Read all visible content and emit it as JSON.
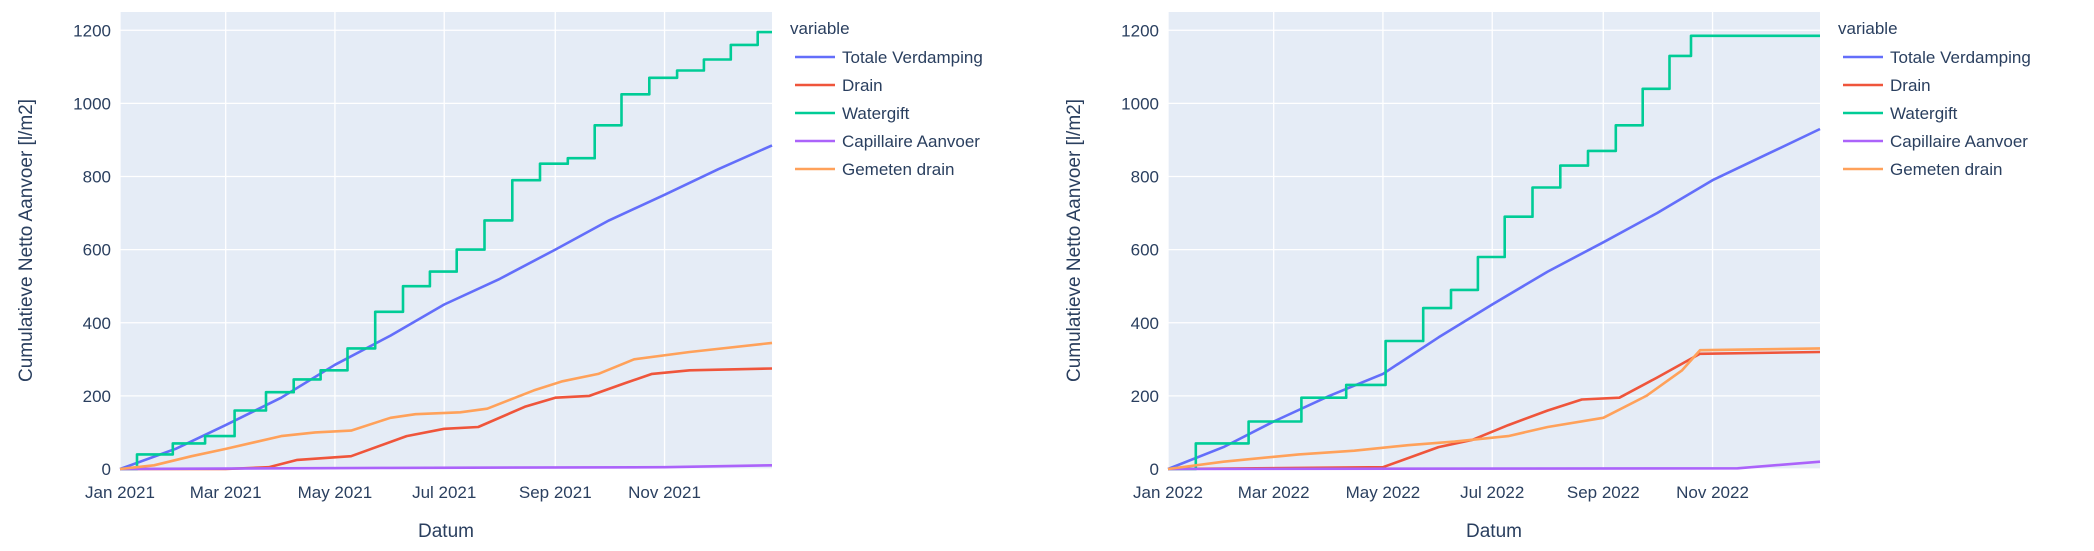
{
  "chart_data": [
    {
      "type": "line",
      "xlabel": "Datum",
      "ylabel": "Cumulatieve Netto Aanvoer [l/m2]",
      "legend_title": "variable",
      "legend_placement": "right",
      "x_ticks": [
        "Jan 2021",
        "Mar 2021",
        "May 2021",
        "Jul 2021",
        "Sep 2021",
        "Nov 2021"
      ],
      "x_tick_dates": [
        "2021-01-01",
        "2021-03-01",
        "2021-05-01",
        "2021-07-01",
        "2021-09-01",
        "2021-11-01"
      ],
      "xlim": [
        "2021-01-01",
        "2021-12-31"
      ],
      "ylim": [
        0,
        1250
      ],
      "y_ticks": [
        0,
        200,
        400,
        600,
        800,
        1000,
        1200
      ],
      "grid": true,
      "series": [
        {
          "name": "Totale Verdamping",
          "color": "#636efa",
          "step": false,
          "x": [
            "2021-01-01",
            "2021-02-01",
            "2021-03-01",
            "2021-04-01",
            "2021-05-01",
            "2021-06-01",
            "2021-07-01",
            "2021-08-01",
            "2021-09-01",
            "2021-10-01",
            "2021-11-01",
            "2021-12-01",
            "2021-12-31"
          ],
          "y": [
            0,
            55,
            120,
            195,
            285,
            365,
            450,
            520,
            600,
            680,
            750,
            820,
            885
          ]
        },
        {
          "name": "Drain",
          "color": "#ef553b",
          "step": false,
          "x": [
            "2021-01-01",
            "2021-03-01",
            "2021-03-25",
            "2021-04-10",
            "2021-05-10",
            "2021-06-10",
            "2021-07-01",
            "2021-07-20",
            "2021-08-15",
            "2021-09-01",
            "2021-09-20",
            "2021-10-10",
            "2021-10-25",
            "2021-11-15",
            "2021-12-31"
          ],
          "y": [
            0,
            0,
            5,
            25,
            35,
            90,
            110,
            115,
            170,
            195,
            200,
            235,
            260,
            270,
            275
          ]
        },
        {
          "name": "Watergift",
          "color": "#00cc96",
          "step": true,
          "x": [
            "2021-01-01",
            "2021-01-20",
            "2021-02-10",
            "2021-02-25",
            "2021-03-15",
            "2021-04-01",
            "2021-04-15",
            "2021-05-01",
            "2021-05-15",
            "2021-06-01",
            "2021-06-15",
            "2021-07-01",
            "2021-07-15",
            "2021-08-01",
            "2021-08-15",
            "2021-09-01",
            "2021-09-15",
            "2021-10-01",
            "2021-10-15",
            "2021-11-01",
            "2021-11-15",
            "2021-12-01",
            "2021-12-15",
            "2021-12-31"
          ],
          "y": [
            0,
            40,
            70,
            90,
            160,
            210,
            245,
            270,
            330,
            430,
            500,
            540,
            600,
            680,
            790,
            835,
            850,
            940,
            1025,
            1070,
            1090,
            1120,
            1160,
            1195
          ]
        },
        {
          "name": "Capillaire Aanvoer",
          "color": "#ab63fa",
          "step": false,
          "x": [
            "2021-01-01",
            "2021-06-01",
            "2021-11-01",
            "2021-12-31"
          ],
          "y": [
            0,
            3,
            5,
            10
          ]
        },
        {
          "name": "Gemeten drain",
          "color": "#ffa15a",
          "step": false,
          "x": [
            "2021-01-01",
            "2021-01-20",
            "2021-02-10",
            "2021-03-01",
            "2021-04-01",
            "2021-04-20",
            "2021-05-10",
            "2021-06-01",
            "2021-06-15",
            "2021-07-10",
            "2021-07-25",
            "2021-08-20",
            "2021-09-05",
            "2021-09-25",
            "2021-10-15",
            "2021-11-15",
            "2021-12-31"
          ],
          "y": [
            0,
            10,
            35,
            55,
            90,
            100,
            105,
            140,
            150,
            155,
            165,
            215,
            240,
            260,
            300,
            320,
            345
          ]
        }
      ]
    },
    {
      "type": "line",
      "xlabel": "Datum",
      "ylabel": "Cumulatieve Netto Aanvoer [l/m2]",
      "legend_title": "variable",
      "legend_placement": "right",
      "x_ticks": [
        "Jan 2022",
        "Mar 2022",
        "May 2022",
        "Jul 2022",
        "Sep 2022",
        "Nov 2022"
      ],
      "x_tick_dates": [
        "2022-01-01",
        "2022-03-01",
        "2022-05-01",
        "2022-07-01",
        "2022-09-01",
        "2022-11-01"
      ],
      "xlim": [
        "2022-01-01",
        "2022-12-31"
      ],
      "ylim": [
        0,
        1250
      ],
      "y_ticks": [
        0,
        200,
        400,
        600,
        800,
        1000,
        1200
      ],
      "grid": true,
      "series": [
        {
          "name": "Totale Verdamping",
          "color": "#636efa",
          "step": false,
          "x": [
            "2022-01-01",
            "2022-02-01",
            "2022-03-01",
            "2022-04-01",
            "2022-05-01",
            "2022-06-01",
            "2022-07-01",
            "2022-08-01",
            "2022-09-01",
            "2022-10-01",
            "2022-11-01",
            "2022-12-01",
            "2022-12-31"
          ],
          "y": [
            0,
            60,
            130,
            200,
            260,
            360,
            450,
            540,
            620,
            700,
            790,
            860,
            930
          ]
        },
        {
          "name": "Drain",
          "color": "#ef553b",
          "step": false,
          "x": [
            "2022-01-01",
            "2022-05-01",
            "2022-06-01",
            "2022-06-20",
            "2022-07-10",
            "2022-08-01",
            "2022-08-20",
            "2022-09-10",
            "2022-10-01",
            "2022-10-25",
            "2022-12-31"
          ],
          "y": [
            0,
            5,
            60,
            80,
            120,
            160,
            190,
            195,
            250,
            315,
            320
          ]
        },
        {
          "name": "Watergift",
          "color": "#00cc96",
          "step": true,
          "x": [
            "2022-01-01",
            "2022-02-01",
            "2022-03-01",
            "2022-04-01",
            "2022-04-20",
            "2022-05-15",
            "2022-06-01",
            "2022-06-15",
            "2022-07-01",
            "2022-07-15",
            "2022-08-01",
            "2022-08-15",
            "2022-09-01",
            "2022-09-15",
            "2022-10-01",
            "2022-10-15",
            "2022-10-25",
            "2022-12-31"
          ],
          "y": [
            0,
            70,
            130,
            195,
            230,
            350,
            440,
            490,
            580,
            690,
            770,
            830,
            870,
            940,
            1040,
            1130,
            1185,
            1185
          ]
        },
        {
          "name": "Capillaire Aanvoer",
          "color": "#ab63fa",
          "step": false,
          "x": [
            "2022-01-01",
            "2022-11-15",
            "2022-12-31"
          ],
          "y": [
            0,
            2,
            20
          ]
        },
        {
          "name": "Gemeten drain",
          "color": "#ffa15a",
          "step": false,
          "x": [
            "2022-01-01",
            "2022-02-01",
            "2022-03-15",
            "2022-04-15",
            "2022-05-15",
            "2022-06-10",
            "2022-07-10",
            "2022-08-01",
            "2022-09-01",
            "2022-09-25",
            "2022-10-15",
            "2022-10-25",
            "2022-12-31"
          ],
          "y": [
            0,
            20,
            40,
            50,
            65,
            75,
            90,
            115,
            140,
            200,
            270,
            325,
            330
          ]
        }
      ]
    }
  ]
}
